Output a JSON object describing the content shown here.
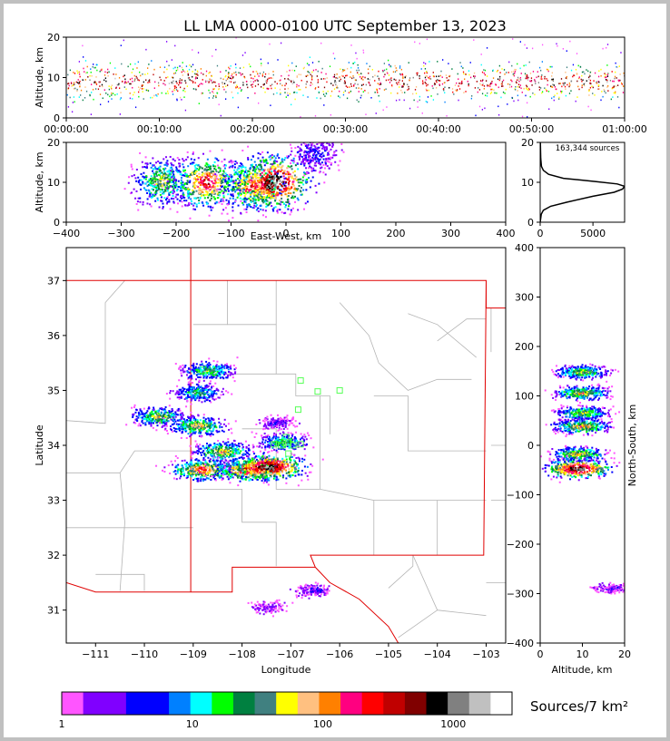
{
  "title": "LL LMA 0000-0100 UTC September 13, 2023",
  "chart_data": [
    {
      "panel": "altitude-vs-time",
      "type": "heatmap",
      "ylabel": "Altitude, km",
      "ylim": [
        0,
        20
      ],
      "yticks": [
        "0",
        "10",
        "20"
      ],
      "xticks": [
        "00:00:00",
        "00:10:00",
        "00:20:00",
        "00:30:00",
        "00:40:00",
        "00:50:00",
        "01:00:00"
      ],
      "xlim_minutes": [
        0,
        60
      ],
      "core_altitude_km": [
        6,
        12
      ],
      "peak_altitude_km": 9
    },
    {
      "panel": "altitude-vs-east-west",
      "type": "heatmap",
      "xlabel": "East-West, km",
      "ylabel": "Altitude, km",
      "xlim": [
        -400,
        400
      ],
      "ylim": [
        0,
        20
      ],
      "xticks": [
        "−400",
        "−300",
        "−200",
        "−100",
        "0",
        "100",
        "200",
        "300",
        "400"
      ],
      "yticks": [
        "0",
        "10",
        "20"
      ],
      "clusters": [
        {
          "x": -225,
          "y": 10,
          "intensity": 0.55
        },
        {
          "x": -145,
          "y": 10,
          "intensity": 0.8
        },
        {
          "x": -60,
          "y": 9,
          "intensity": 0.75
        },
        {
          "x": -20,
          "y": 10,
          "intensity": 1.0
        },
        {
          "x": 55,
          "y": 17,
          "intensity": 0.2
        }
      ]
    },
    {
      "panel": "altitude-histogram",
      "type": "line",
      "annotation": "163,344 sources",
      "xlim": [
        0,
        8000
      ],
      "ylim": [
        0,
        20
      ],
      "xticks": [
        "0",
        "5000"
      ],
      "yticks": [
        "0",
        "10",
        "20"
      ],
      "x": [
        0,
        100,
        300,
        1000,
        2500,
        5000,
        7000,
        7800,
        8000,
        7300,
        5200,
        2200,
        800,
        300,
        120,
        50,
        20
      ],
      "y": [
        0,
        2,
        3,
        4,
        5,
        6.5,
        7.5,
        8.3,
        9,
        9.6,
        10.2,
        11,
        12,
        13,
        14,
        16,
        20
      ]
    },
    {
      "panel": "plan-view-map",
      "type": "heatmap",
      "xlabel": "Longitude",
      "ylabel": "Latitude",
      "xlim": [
        -111.6,
        -102.6
      ],
      "ylim": [
        30.4,
        37.6
      ],
      "xticks": [
        "−111",
        "−110",
        "−109",
        "−108",
        "−107",
        "−106",
        "−105",
        "−104",
        "−103"
      ],
      "yticks": [
        "31",
        "32",
        "33",
        "34",
        "35",
        "36",
        "37"
      ],
      "clusters": [
        {
          "lon": -108.7,
          "lat": 35.35,
          "intensity": 0.5
        },
        {
          "lon": -108.9,
          "lat": 34.95,
          "intensity": 0.45
        },
        {
          "lon": -109.7,
          "lat": 34.52,
          "intensity": 0.55
        },
        {
          "lon": -108.9,
          "lat": 34.35,
          "intensity": 0.6
        },
        {
          "lon": -108.4,
          "lat": 33.88,
          "intensity": 0.6
        },
        {
          "lon": -108.8,
          "lat": 33.55,
          "intensity": 0.75
        },
        {
          "lon": -107.85,
          "lat": 33.55,
          "intensity": 0.85
        },
        {
          "lon": -107.45,
          "lat": 33.6,
          "intensity": 1.0
        },
        {
          "lon": -107.15,
          "lat": 34.05,
          "intensity": 0.45
        },
        {
          "lon": -107.3,
          "lat": 34.4,
          "intensity": 0.15
        },
        {
          "lon": -106.55,
          "lat": 31.35,
          "intensity": 0.15
        },
        {
          "lon": -107.45,
          "lat": 31.05,
          "intensity": 0.1
        }
      ],
      "stations": [
        {
          "lon": -106.8,
          "lat": 35.18
        },
        {
          "lon": -106.45,
          "lat": 34.98
        },
        {
          "lon": -106.0,
          "lat": 35.0
        },
        {
          "lon": -106.85,
          "lat": 34.65
        },
        {
          "lon": -107.05,
          "lat": 34.05
        },
        {
          "lon": -107.2,
          "lat": 34.0
        },
        {
          "lon": -106.95,
          "lat": 34.0
        },
        {
          "lon": -106.8,
          "lat": 34.02
        },
        {
          "lon": -107.05,
          "lat": 33.85
        },
        {
          "lon": -107.35,
          "lat": 34.02
        },
        {
          "lon": -107.1,
          "lat": 34.15
        }
      ]
    },
    {
      "panel": "north-south-vs-altitude",
      "type": "heatmap",
      "xlabel": "Altitude, km",
      "ylabel": "North-South, km",
      "xlim": [
        0,
        20
      ],
      "ylim": [
        -400,
        400
      ],
      "xticks": [
        "0",
        "10",
        "20"
      ],
      "yticks": [
        "−400",
        "−300",
        "−200",
        "−100",
        "0",
        "100",
        "200",
        "300",
        "400"
      ],
      "clusters": [
        {
          "alt": 10,
          "ns": 148,
          "intensity": 0.55
        },
        {
          "alt": 10,
          "ns": 105,
          "intensity": 0.6
        },
        {
          "alt": 10,
          "ns": 65,
          "intensity": 0.55
        },
        {
          "alt": 10,
          "ns": 38,
          "intensity": 0.65
        },
        {
          "alt": 9,
          "ns": -18,
          "intensity": 0.6
        },
        {
          "alt": 9,
          "ns": -48,
          "intensity": 1.0
        },
        {
          "alt": 17,
          "ns": -290,
          "intensity": 0.12
        }
      ]
    }
  ],
  "colorbar": {
    "label": "Sources/7 km²",
    "ticks": [
      "1",
      "10",
      "100",
      "1000"
    ],
    "colors": [
      "#ff55ff",
      "#8000ff",
      "#8000ff",
      "#0000ff",
      "#0000ff",
      "#0080ff",
      "#00ffff",
      "#00ff00",
      "#008040",
      "#408080",
      "#ffff00",
      "#ffc080",
      "#ff8000",
      "#ff0080",
      "#ff0000",
      "#c00000",
      "#800000",
      "#000000",
      "#808080",
      "#c0c0c0",
      "#ffffff"
    ]
  }
}
